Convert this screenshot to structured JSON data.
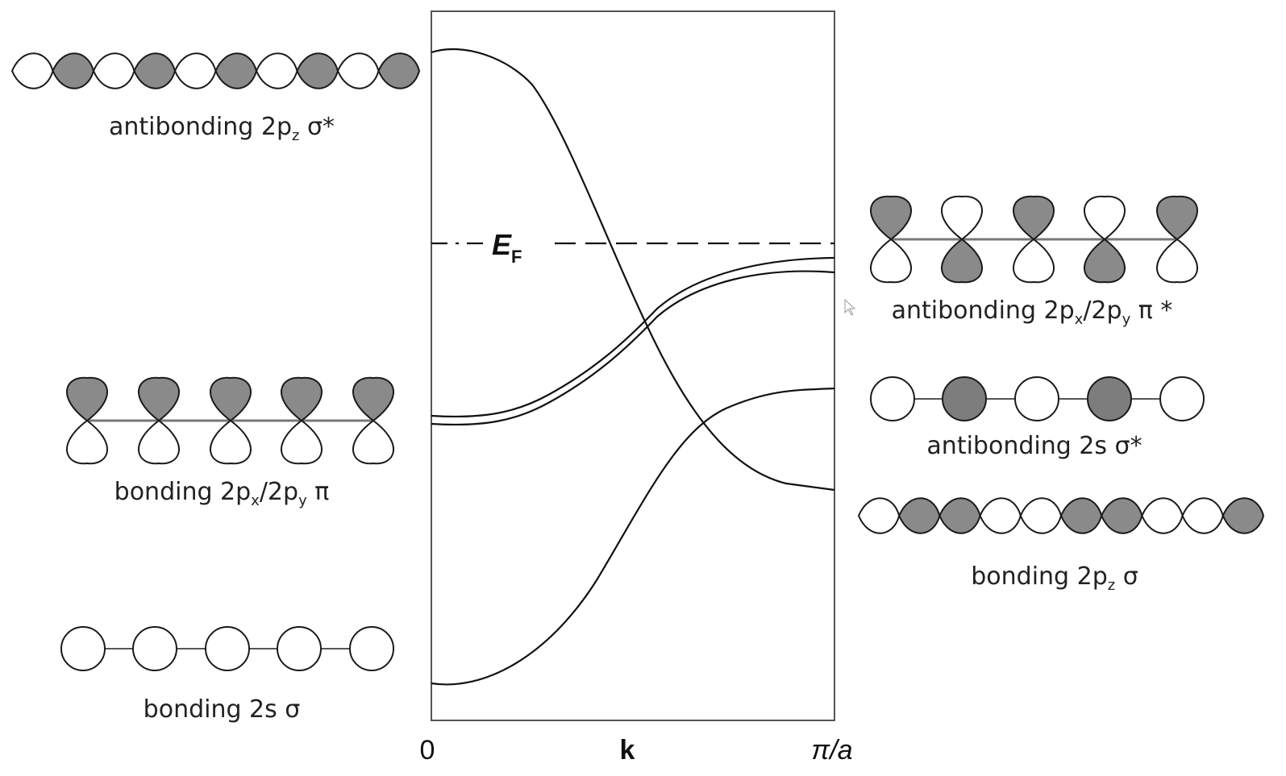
{
  "plot": {
    "x_start": "0",
    "x_axis": "k",
    "x_end": "π/a",
    "fermi": [
      "E",
      "F"
    ]
  },
  "orbitals": [
    {
      "parts": [
        "antibonding 2p",
        "z",
        " σ*"
      ]
    },
    {
      "parts": [
        "bonding 2p",
        "x",
        "/2p",
        "y",
        " π"
      ]
    },
    {
      "parts": [
        "bonding 2s σ"
      ]
    },
    {
      "parts": [
        "antibonding 2p",
        "x",
        "/2p",
        "y",
        " π *"
      ]
    },
    {
      "parts": [
        "antibonding 2s σ*"
      ]
    },
    {
      "parts": [
        "bonding 2p",
        "z",
        " σ"
      ]
    }
  ]
}
